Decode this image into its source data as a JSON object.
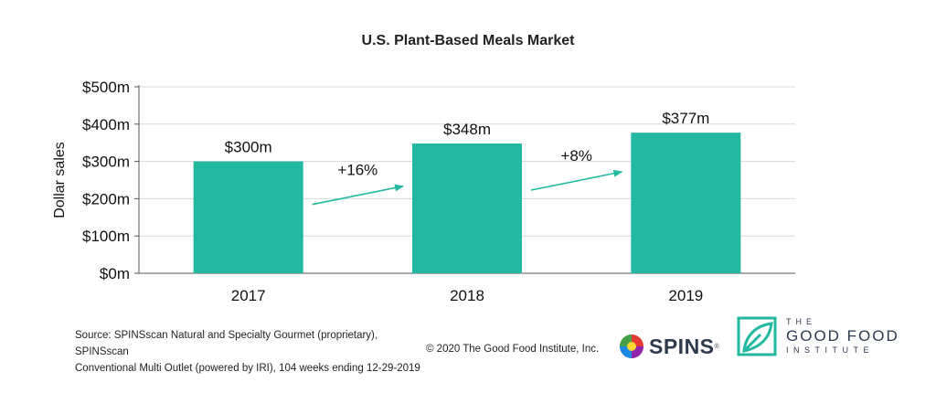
{
  "chart_data": {
    "type": "bar",
    "title": "U.S. Plant-Based Meals Market",
    "xlabel": "",
    "ylabel": "Dollar sales",
    "categories": [
      "2017",
      "2018",
      "2019"
    ],
    "values": [
      300,
      348,
      377
    ],
    "value_labels": [
      "$300m",
      "$348m",
      "$377m"
    ],
    "ylim": [
      0,
      500
    ],
    "yticks": [
      0,
      100,
      200,
      300,
      400,
      500
    ],
    "ytick_labels": [
      "$0m",
      "$100m",
      "$200m",
      "$300m",
      "$400m",
      "$500m"
    ],
    "grid": true,
    "annotations": [
      {
        "label": "+16%",
        "from": "2017",
        "to": "2018"
      },
      {
        "label": "+8%",
        "from": "2018",
        "to": "2019"
      }
    ],
    "bar_color": "#22b9a0",
    "arrow_color": "#22b9a0",
    "grid_color": "#d9d9d9"
  },
  "footer": {
    "source_line1": "Source: SPINSscan Natural and Specialty Gourmet (proprietary), SPINSscan",
    "source_line2": "Conventional Multi Outlet (powered by IRI), 104 weeks ending 12-29-2019",
    "copyright": "© 2020 The Good Food Institute, Inc."
  },
  "logos": {
    "spins": "SPINS",
    "spins_mark": "®",
    "gfi_line1": "THE",
    "gfi_line2": "GOOD FOOD",
    "gfi_line3": "INSTITUTE",
    "gfi_color": "#22b9a0"
  }
}
